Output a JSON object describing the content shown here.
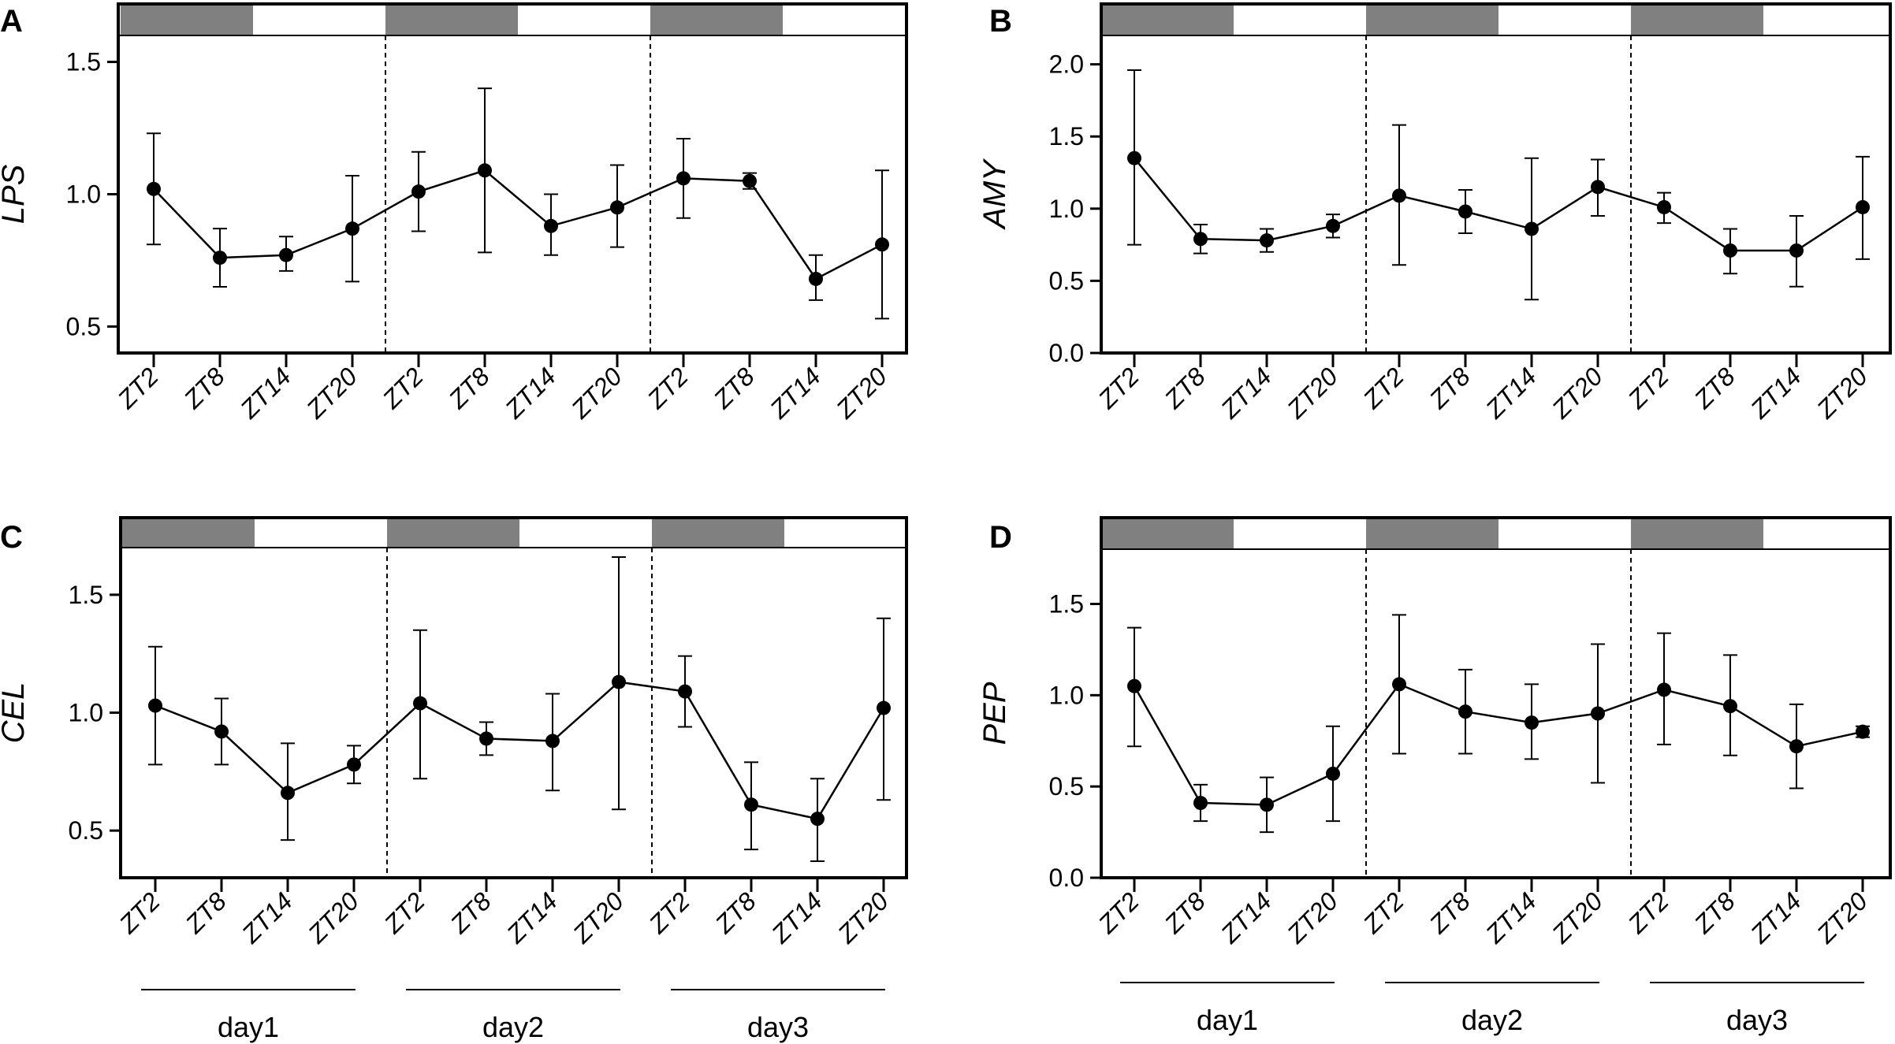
{
  "figure": {
    "day_labels": [
      "day1",
      "day2",
      "day3"
    ]
  },
  "colors": {
    "dark_bar": "#808080",
    "light_bar": "#ffffff",
    "line": "#000000"
  },
  "chart_data": [
    {
      "panel": "A",
      "type": "line",
      "ylabel": "LPS",
      "ylim": [
        0.4,
        1.6
      ],
      "yticks": [
        0.5,
        1.0,
        1.5
      ],
      "ytick_labels": [
        "0.5",
        "1.0",
        "1.5"
      ],
      "categories": [
        "ZT2",
        "ZT8",
        "ZT14",
        "ZT20",
        "ZT2",
        "ZT8",
        "ZT14",
        "ZT20",
        "ZT2",
        "ZT8",
        "ZT14",
        "ZT20"
      ],
      "values": [
        1.02,
        0.76,
        0.77,
        0.87,
        1.01,
        1.09,
        0.88,
        0.95,
        1.06,
        1.05,
        0.68,
        0.81
      ],
      "err_low": [
        0.81,
        0.65,
        0.71,
        0.67,
        0.86,
        0.78,
        0.77,
        0.8,
        0.91,
        1.02,
        0.6,
        0.53
      ],
      "err_high": [
        1.23,
        0.87,
        0.84,
        1.07,
        1.16,
        1.4,
        1.0,
        1.11,
        1.21,
        1.08,
        0.77,
        1.09
      ]
    },
    {
      "panel": "B",
      "type": "line",
      "ylabel": "AMY",
      "ylim": [
        0.0,
        2.2
      ],
      "yticks": [
        0.0,
        0.5,
        1.0,
        1.5,
        2.0
      ],
      "ytick_labels": [
        "0.0",
        "0.5",
        "1.0",
        "1.5",
        "2.0"
      ],
      "categories": [
        "ZT2",
        "ZT8",
        "ZT14",
        "ZT20",
        "ZT2",
        "ZT8",
        "ZT14",
        "ZT20",
        "ZT2",
        "ZT8",
        "ZT14",
        "ZT20"
      ],
      "values": [
        1.35,
        0.79,
        0.78,
        0.88,
        1.09,
        0.98,
        0.86,
        1.15,
        1.01,
        0.71,
        0.71,
        1.01
      ],
      "err_low": [
        0.75,
        0.69,
        0.7,
        0.8,
        0.61,
        0.83,
        0.37,
        0.95,
        0.9,
        0.55,
        0.46,
        0.65
      ],
      "err_high": [
        1.96,
        0.89,
        0.86,
        0.96,
        1.58,
        1.13,
        1.35,
        1.34,
        1.11,
        0.86,
        0.95,
        1.36
      ]
    },
    {
      "panel": "C",
      "type": "line",
      "ylabel": "CEL",
      "ylim": [
        0.3,
        1.7
      ],
      "yticks": [
        0.5,
        1.0,
        1.5
      ],
      "ytick_labels": [
        "0.5",
        "1.0",
        "1.5"
      ],
      "categories": [
        "ZT2",
        "ZT8",
        "ZT14",
        "ZT20",
        "ZT2",
        "ZT8",
        "ZT14",
        "ZT20",
        "ZT2",
        "ZT8",
        "ZT14",
        "ZT20"
      ],
      "values": [
        1.03,
        0.92,
        0.66,
        0.78,
        1.04,
        0.89,
        0.88,
        1.13,
        1.09,
        0.61,
        0.55,
        1.02
      ],
      "err_low": [
        0.78,
        0.78,
        0.46,
        0.7,
        0.72,
        0.82,
        0.67,
        0.59,
        0.94,
        0.42,
        0.37,
        0.63
      ],
      "err_high": [
        1.28,
        1.06,
        0.87,
        0.86,
        1.35,
        0.96,
        1.08,
        1.66,
        1.24,
        0.79,
        0.72,
        1.4
      ]
    },
    {
      "panel": "D",
      "type": "line",
      "ylabel": "PEP",
      "ylim": [
        0.0,
        1.8
      ],
      "yticks": [
        0.0,
        0.5,
        1.0,
        1.5
      ],
      "ytick_labels": [
        "0.0",
        "0.5",
        "1.0",
        "1.5"
      ],
      "categories": [
        "ZT2",
        "ZT8",
        "ZT14",
        "ZT20",
        "ZT2",
        "ZT8",
        "ZT14",
        "ZT20",
        "ZT2",
        "ZT8",
        "ZT14",
        "ZT20"
      ],
      "values": [
        1.05,
        0.41,
        0.4,
        0.57,
        1.06,
        0.91,
        0.85,
        0.9,
        1.03,
        0.94,
        0.72,
        0.8
      ],
      "err_low": [
        0.72,
        0.31,
        0.25,
        0.31,
        0.68,
        0.68,
        0.65,
        0.52,
        0.73,
        0.67,
        0.49,
        0.77
      ],
      "err_high": [
        1.37,
        0.51,
        0.55,
        0.83,
        1.44,
        1.14,
        1.06,
        1.28,
        1.34,
        1.22,
        0.95,
        0.83
      ]
    }
  ]
}
